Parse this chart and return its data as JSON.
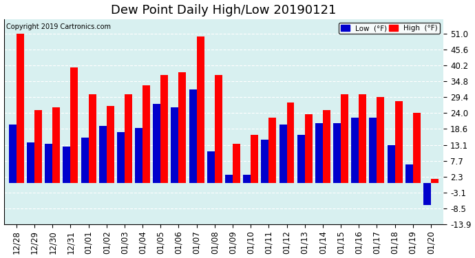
{
  "title": "Dew Point Daily High/Low 20190121",
  "copyright": "Copyright 2019 Cartronics.com",
  "labels": [
    "12/28",
    "12/29",
    "12/30",
    "12/31",
    "01/01",
    "01/02",
    "01/03",
    "01/04",
    "01/05",
    "01/06",
    "01/07",
    "01/08",
    "01/09",
    "01/10",
    "01/11",
    "01/12",
    "01/13",
    "01/14",
    "01/15",
    "01/16",
    "01/17",
    "01/18",
    "01/19",
    "01/20"
  ],
  "low_values": [
    20.0,
    14.0,
    13.5,
    12.5,
    15.5,
    19.5,
    17.5,
    19.0,
    27.0,
    26.0,
    32.0,
    11.0,
    3.0,
    3.0,
    15.0,
    20.0,
    16.5,
    20.5,
    20.5,
    22.5,
    22.5,
    13.0,
    6.5,
    -7.5
  ],
  "high_values": [
    51.0,
    25.0,
    26.0,
    39.5,
    30.5,
    26.5,
    30.5,
    33.5,
    37.0,
    38.0,
    50.0,
    37.0,
    13.5,
    16.5,
    22.5,
    27.5,
    23.5,
    25.0,
    30.5,
    30.5,
    29.5,
    28.0,
    24.0,
    1.5
  ],
  "low_color": "#0000cc",
  "high_color": "#ff0000",
  "bg_color": "#ffffff",
  "plot_bg_color": "#d8f0f0",
  "grid_color": "#ffffff",
  "yticks": [
    -13.9,
    -8.5,
    -3.1,
    2.3,
    7.7,
    13.1,
    18.6,
    24.0,
    29.4,
    34.8,
    40.2,
    45.6,
    51.0
  ],
  "ymin": -13.9,
  "ymax": 56.0,
  "title_fontsize": 13,
  "tick_fontsize": 8.5
}
